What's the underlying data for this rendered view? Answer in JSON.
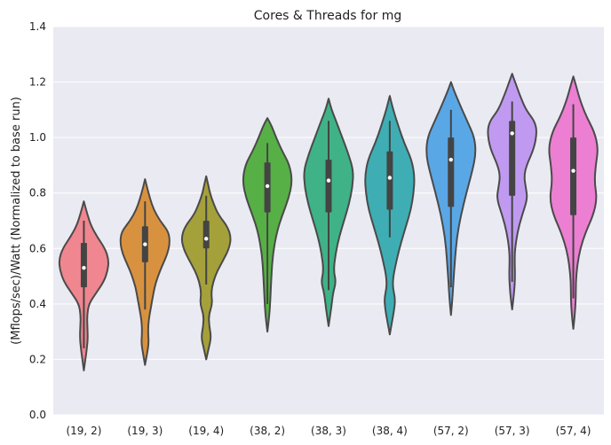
{
  "chart_data": {
    "type": "violin",
    "title": "Cores & Threads for mg",
    "xlabel": "",
    "ylabel": "(Mflops/sec)/Watt (Normalized to base run)",
    "ylim": [
      0.0,
      1.4
    ],
    "yticks": [
      "0.0",
      "0.2",
      "0.4",
      "0.6",
      "0.8",
      "1.0",
      "1.2",
      "1.4"
    ],
    "grid": true,
    "categories": [
      "(19, 2)",
      "(19, 3)",
      "(19, 4)",
      "(38, 2)",
      "(38, 3)",
      "(38, 4)",
      "(57, 2)",
      "(57, 3)",
      "(57, 4)"
    ],
    "colors": [
      "#f0868f",
      "#d8923f",
      "#a5a13a",
      "#57b045",
      "#3fb387",
      "#3eaeb4",
      "#5aa7e6",
      "#c09af0",
      "#ec7fd2"
    ],
    "series": [
      {
        "min": 0.16,
        "max": 0.77,
        "median": 0.53,
        "q1": 0.46,
        "q3": 0.62,
        "whisker_low": 0.24,
        "whisker_high": 0.7,
        "profile": [
          [
            0.16,
            0.0
          ],
          [
            0.2,
            0.06
          ],
          [
            0.24,
            0.12
          ],
          [
            0.28,
            0.16
          ],
          [
            0.32,
            0.14
          ],
          [
            0.36,
            0.13
          ],
          [
            0.4,
            0.2
          ],
          [
            0.44,
            0.5
          ],
          [
            0.48,
            0.8
          ],
          [
            0.52,
            0.96
          ],
          [
            0.56,
            1.0
          ],
          [
            0.6,
            0.85
          ],
          [
            0.64,
            0.55
          ],
          [
            0.68,
            0.3
          ],
          [
            0.72,
            0.15
          ],
          [
            0.77,
            0.0
          ]
        ]
      },
      {
        "min": 0.18,
        "max": 0.85,
        "median": 0.615,
        "q1": 0.55,
        "q3": 0.68,
        "whisker_low": 0.38,
        "whisker_high": 0.77,
        "profile": [
          [
            0.18,
            0.0
          ],
          [
            0.22,
            0.08
          ],
          [
            0.26,
            0.15
          ],
          [
            0.3,
            0.12
          ],
          [
            0.34,
            0.14
          ],
          [
            0.38,
            0.22
          ],
          [
            0.42,
            0.3
          ],
          [
            0.46,
            0.38
          ],
          [
            0.5,
            0.52
          ],
          [
            0.54,
            0.7
          ],
          [
            0.58,
            0.9
          ],
          [
            0.62,
            1.0
          ],
          [
            0.66,
            0.95
          ],
          [
            0.7,
            0.6
          ],
          [
            0.74,
            0.35
          ],
          [
            0.78,
            0.2
          ],
          [
            0.82,
            0.08
          ],
          [
            0.85,
            0.0
          ]
        ]
      },
      {
        "min": 0.2,
        "max": 0.86,
        "median": 0.635,
        "q1": 0.6,
        "q3": 0.7,
        "whisker_low": 0.47,
        "whisker_high": 0.79,
        "profile": [
          [
            0.2,
            0.0
          ],
          [
            0.24,
            0.1
          ],
          [
            0.28,
            0.2
          ],
          [
            0.32,
            0.12
          ],
          [
            0.36,
            0.1
          ],
          [
            0.4,
            0.25
          ],
          [
            0.44,
            0.2
          ],
          [
            0.48,
            0.28
          ],
          [
            0.52,
            0.45
          ],
          [
            0.56,
            0.7
          ],
          [
            0.6,
            0.92
          ],
          [
            0.64,
            1.0
          ],
          [
            0.68,
            0.85
          ],
          [
            0.72,
            0.5
          ],
          [
            0.76,
            0.3
          ],
          [
            0.8,
            0.15
          ],
          [
            0.83,
            0.08
          ],
          [
            0.86,
            0.0
          ]
        ]
      },
      {
        "min": 0.3,
        "max": 1.07,
        "median": 0.825,
        "q1": 0.73,
        "q3": 0.91,
        "whisker_low": 0.4,
        "whisker_high": 0.98,
        "profile": [
          [
            0.3,
            0.0
          ],
          [
            0.36,
            0.08
          ],
          [
            0.42,
            0.12
          ],
          [
            0.5,
            0.16
          ],
          [
            0.58,
            0.22
          ],
          [
            0.66,
            0.38
          ],
          [
            0.72,
            0.6
          ],
          [
            0.78,
            0.85
          ],
          [
            0.84,
            1.0
          ],
          [
            0.9,
            0.9
          ],
          [
            0.95,
            0.6
          ],
          [
            1.0,
            0.35
          ],
          [
            1.04,
            0.18
          ],
          [
            1.07,
            0.0
          ]
        ]
      },
      {
        "min": 0.32,
        "max": 1.14,
        "median": 0.845,
        "q1": 0.73,
        "q3": 0.92,
        "whisker_low": 0.45,
        "whisker_high": 1.06,
        "profile": [
          [
            0.32,
            0.0
          ],
          [
            0.38,
            0.1
          ],
          [
            0.44,
            0.18
          ],
          [
            0.48,
            0.3
          ],
          [
            0.52,
            0.2
          ],
          [
            0.58,
            0.28
          ],
          [
            0.64,
            0.42
          ],
          [
            0.7,
            0.62
          ],
          [
            0.76,
            0.82
          ],
          [
            0.82,
            0.96
          ],
          [
            0.88,
            1.0
          ],
          [
            0.94,
            0.8
          ],
          [
            1.0,
            0.55
          ],
          [
            1.06,
            0.3
          ],
          [
            1.1,
            0.12
          ],
          [
            1.14,
            0.0
          ]
        ]
      },
      {
        "min": 0.29,
        "max": 1.15,
        "median": 0.855,
        "q1": 0.74,
        "q3": 0.95,
        "whisker_low": 0.64,
        "whisker_high": 1.06,
        "profile": [
          [
            0.29,
            0.0
          ],
          [
            0.33,
            0.08
          ],
          [
            0.38,
            0.18
          ],
          [
            0.42,
            0.22
          ],
          [
            0.46,
            0.12
          ],
          [
            0.5,
            0.14
          ],
          [
            0.56,
            0.28
          ],
          [
            0.62,
            0.45
          ],
          [
            0.68,
            0.65
          ],
          [
            0.74,
            0.85
          ],
          [
            0.8,
            0.96
          ],
          [
            0.86,
            1.0
          ],
          [
            0.92,
            0.88
          ],
          [
            0.98,
            0.58
          ],
          [
            1.04,
            0.35
          ],
          [
            1.1,
            0.14
          ],
          [
            1.15,
            0.0
          ]
        ]
      },
      {
        "min": 0.36,
        "max": 1.2,
        "median": 0.92,
        "q1": 0.75,
        "q3": 1.0,
        "whisker_low": 0.46,
        "whisker_high": 1.1,
        "profile": [
          [
            0.36,
            0.0
          ],
          [
            0.42,
            0.06
          ],
          [
            0.48,
            0.1
          ],
          [
            0.56,
            0.16
          ],
          [
            0.64,
            0.24
          ],
          [
            0.72,
            0.4
          ],
          [
            0.8,
            0.62
          ],
          [
            0.88,
            0.86
          ],
          [
            0.94,
            1.0
          ],
          [
            1.0,
            0.95
          ],
          [
            1.06,
            0.65
          ],
          [
            1.12,
            0.35
          ],
          [
            1.17,
            0.12
          ],
          [
            1.2,
            0.0
          ]
        ]
      },
      {
        "min": 0.38,
        "max": 1.23,
        "median": 1.015,
        "q1": 0.79,
        "q3": 1.06,
        "whisker_low": 0.48,
        "whisker_high": 1.13,
        "profile": [
          [
            0.38,
            0.0
          ],
          [
            0.44,
            0.08
          ],
          [
            0.5,
            0.12
          ],
          [
            0.56,
            0.1
          ],
          [
            0.6,
            0.12
          ],
          [
            0.66,
            0.22
          ],
          [
            0.72,
            0.4
          ],
          [
            0.78,
            0.62
          ],
          [
            0.82,
            0.55
          ],
          [
            0.86,
            0.48
          ],
          [
            0.9,
            0.58
          ],
          [
            0.96,
            0.88
          ],
          [
            1.02,
            1.0
          ],
          [
            1.06,
            0.9
          ],
          [
            1.1,
            0.55
          ],
          [
            1.16,
            0.28
          ],
          [
            1.2,
            0.12
          ],
          [
            1.23,
            0.0
          ]
        ]
      },
      {
        "min": 0.31,
        "max": 1.22,
        "median": 0.88,
        "q1": 0.72,
        "q3": 1.0,
        "whisker_low": 0.42,
        "whisker_high": 1.12,
        "profile": [
          [
            0.31,
            0.0
          ],
          [
            0.36,
            0.06
          ],
          [
            0.42,
            0.1
          ],
          [
            0.48,
            0.1
          ],
          [
            0.54,
            0.16
          ],
          [
            0.6,
            0.28
          ],
          [
            0.66,
            0.5
          ],
          [
            0.72,
            0.8
          ],
          [
            0.78,
            0.95
          ],
          [
            0.84,
            0.85
          ],
          [
            0.9,
            0.9
          ],
          [
            0.96,
            1.0
          ],
          [
            1.02,
            0.85
          ],
          [
            1.08,
            0.5
          ],
          [
            1.14,
            0.25
          ],
          [
            1.19,
            0.1
          ],
          [
            1.22,
            0.0
          ]
        ]
      }
    ]
  }
}
